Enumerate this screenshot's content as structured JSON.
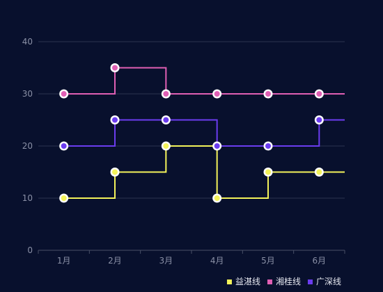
{
  "chart_data": {
    "type": "line",
    "step": "end",
    "categories": [
      "1月",
      "2月",
      "3月",
      "4月",
      "5月",
      "6月"
    ],
    "ylim": [
      0,
      40
    ],
    "yticks": [
      0,
      10,
      20,
      30,
      40
    ],
    "grid": true,
    "legend_position": "bottom-right",
    "series": [
      {
        "name": "益湛线",
        "color": "#f4f35a",
        "values": [
          10,
          15,
          20,
          10,
          15,
          15
        ]
      },
      {
        "name": "湘桂线",
        "color": "#e05fb4",
        "values": [
          30,
          35,
          30,
          30,
          30,
          30
        ]
      },
      {
        "name": "广深线",
        "color": "#6b3cf0",
        "values": [
          20,
          25,
          25,
          20,
          20,
          25
        ]
      }
    ]
  }
}
